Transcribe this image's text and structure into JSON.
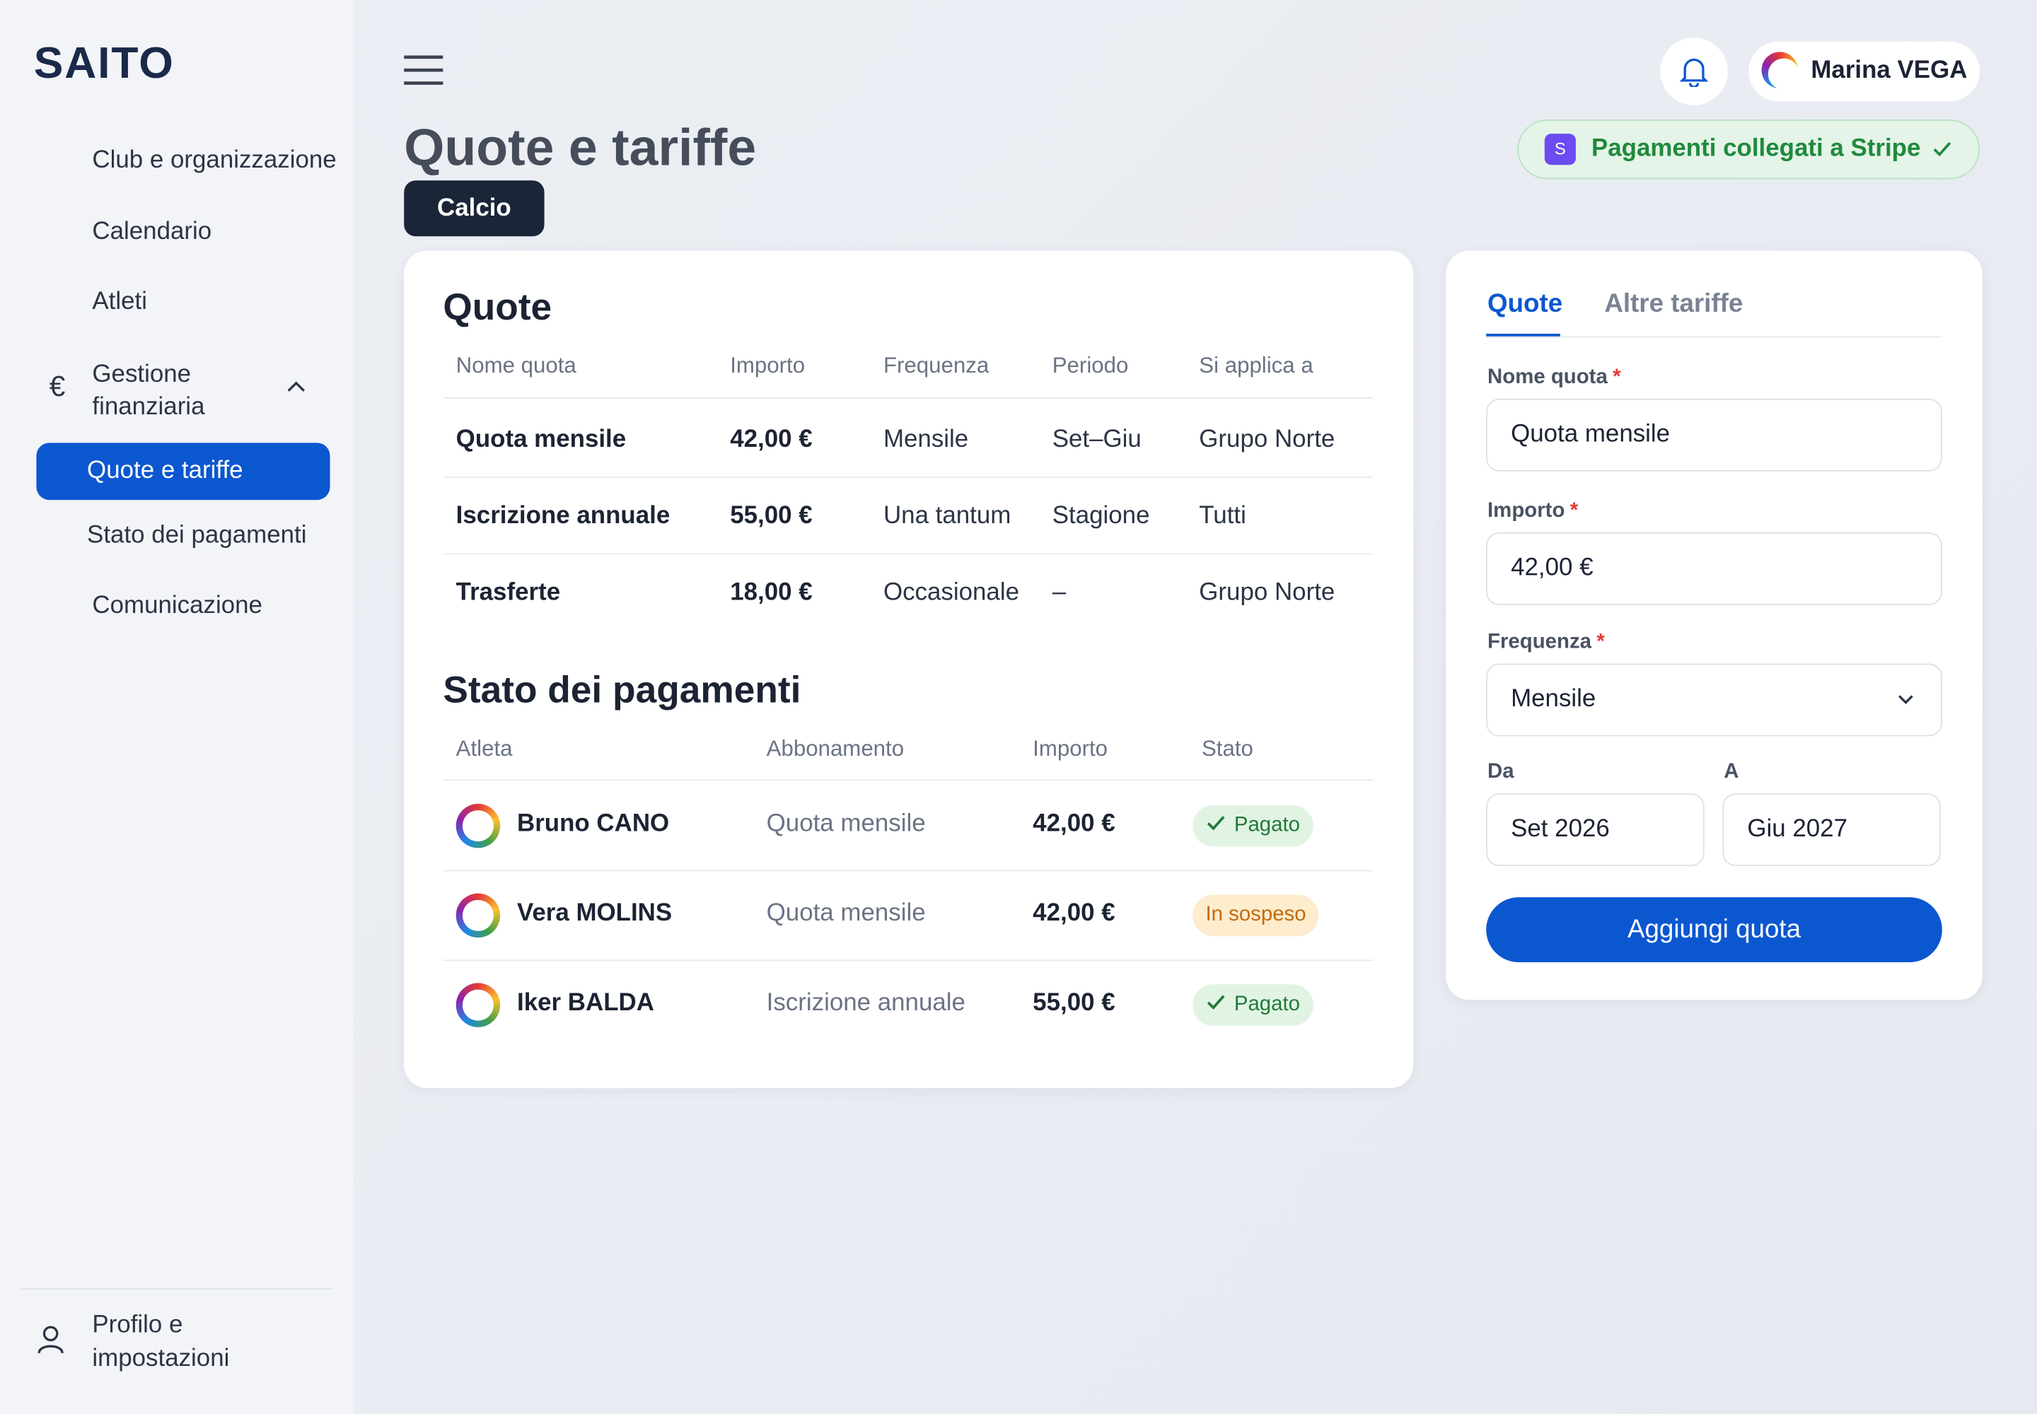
{
  "brand": "SAITO",
  "sidebar": {
    "items": [
      "Club e organizzazione",
      "Calendario",
      "Atleti"
    ],
    "group": {
      "icon": "€",
      "label": "Gestione finanziaria",
      "items": [
        "Quote e tariffe",
        "Stato dei pagamenti"
      ]
    },
    "after": [
      "Comunicazione"
    ],
    "footer": "Profilo e impostazioni"
  },
  "header": {
    "user": "Marina VEGA",
    "stripe": {
      "badge": "S",
      "text": "Pagamenti collegati a Stripe"
    }
  },
  "page": {
    "title": "Quote e tariffe",
    "chip": "Calcio"
  },
  "fees": {
    "title": "Quote",
    "columns": [
      "Nome quota",
      "Importo",
      "Frequenza",
      "Periodo",
      "Si applica a"
    ],
    "rows": [
      [
        "Quota mensile",
        "42,00 €",
        "Mensile",
        "Set–Giu",
        "Grupo Norte"
      ],
      [
        "Iscrizione annuale",
        "55,00 €",
        "Una tantum",
        "Stagione",
        "Tutti"
      ],
      [
        "Trasferte",
        "18,00 €",
        "Occasionale",
        "–",
        "Grupo Norte"
      ]
    ]
  },
  "payments": {
    "title": "Stato dei pagamenti",
    "columns": [
      "Atleta",
      "Abbonamento",
      "Importo",
      "Stato"
    ],
    "rows": [
      [
        "Bruno CANO",
        "Quota mensile",
        "42,00 €",
        "Pagato"
      ],
      [
        "Vera MOLINS",
        "Quota mensile",
        "42,00 €",
        "In sospeso"
      ],
      [
        "Iker BALDA",
        "Iscrizione annuale",
        "55,00 €",
        "Pagato"
      ]
    ]
  },
  "form": {
    "tabs": [
      "Quote",
      "Altre tariffe"
    ],
    "required_mark": "*",
    "name": {
      "label": "Nome quota",
      "value": "Quota mensile"
    },
    "amount": {
      "label": "Importo",
      "value": "42,00 €"
    },
    "frequency": {
      "label": "Frequenza",
      "value": "Mensile"
    },
    "from": {
      "label": "Da",
      "value": "Set 2026"
    },
    "to": {
      "label": "A",
      "value": "Giu 2027"
    },
    "button": "Aggiungi quota"
  }
}
